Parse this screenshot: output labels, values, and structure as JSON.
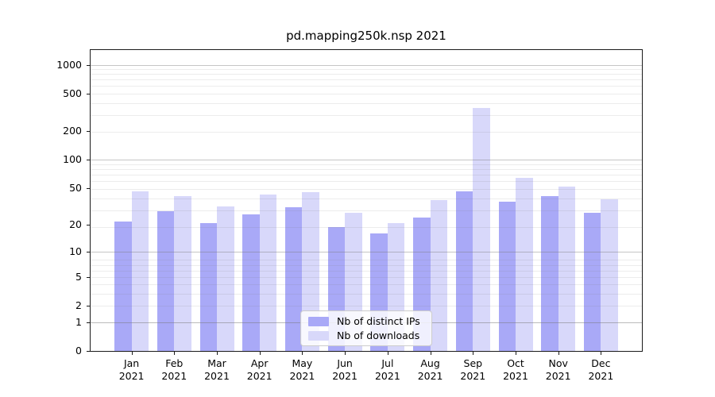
{
  "chart_data": {
    "type": "bar",
    "title": "pd.mapping250k.nsp 2021",
    "categories": [
      "Jan 2021",
      "Feb 2021",
      "Mar 2021",
      "Apr 2021",
      "May 2021",
      "Jun 2021",
      "Jul 2021",
      "Aug 2021",
      "Sep 2021",
      "Oct 2021",
      "Nov 2021",
      "Dec 2021"
    ],
    "series": [
      {
        "name": "Nb of distinct IPs",
        "color": "#a9a9f7",
        "values": [
          22,
          28,
          21,
          26,
          31,
          19,
          16,
          24,
          46,
          36,
          41,
          27
        ]
      },
      {
        "name": "Nb of downloads",
        "color": "#d8d8fa",
        "values": [
          46,
          41,
          32,
          43,
          45,
          27,
          21,
          37,
          355,
          65,
          52,
          38
        ]
      }
    ],
    "xlabel": "",
    "ylabel": "",
    "yscale": "log1p",
    "ylim": [
      0,
      1430
    ],
    "y_ticks": [
      0,
      1,
      2,
      5,
      10,
      20,
      50,
      100,
      200,
      500,
      1000
    ],
    "grid": "major and minor horizontal gridlines drawn over bars",
    "legend_position": "lower center inside plot"
  }
}
